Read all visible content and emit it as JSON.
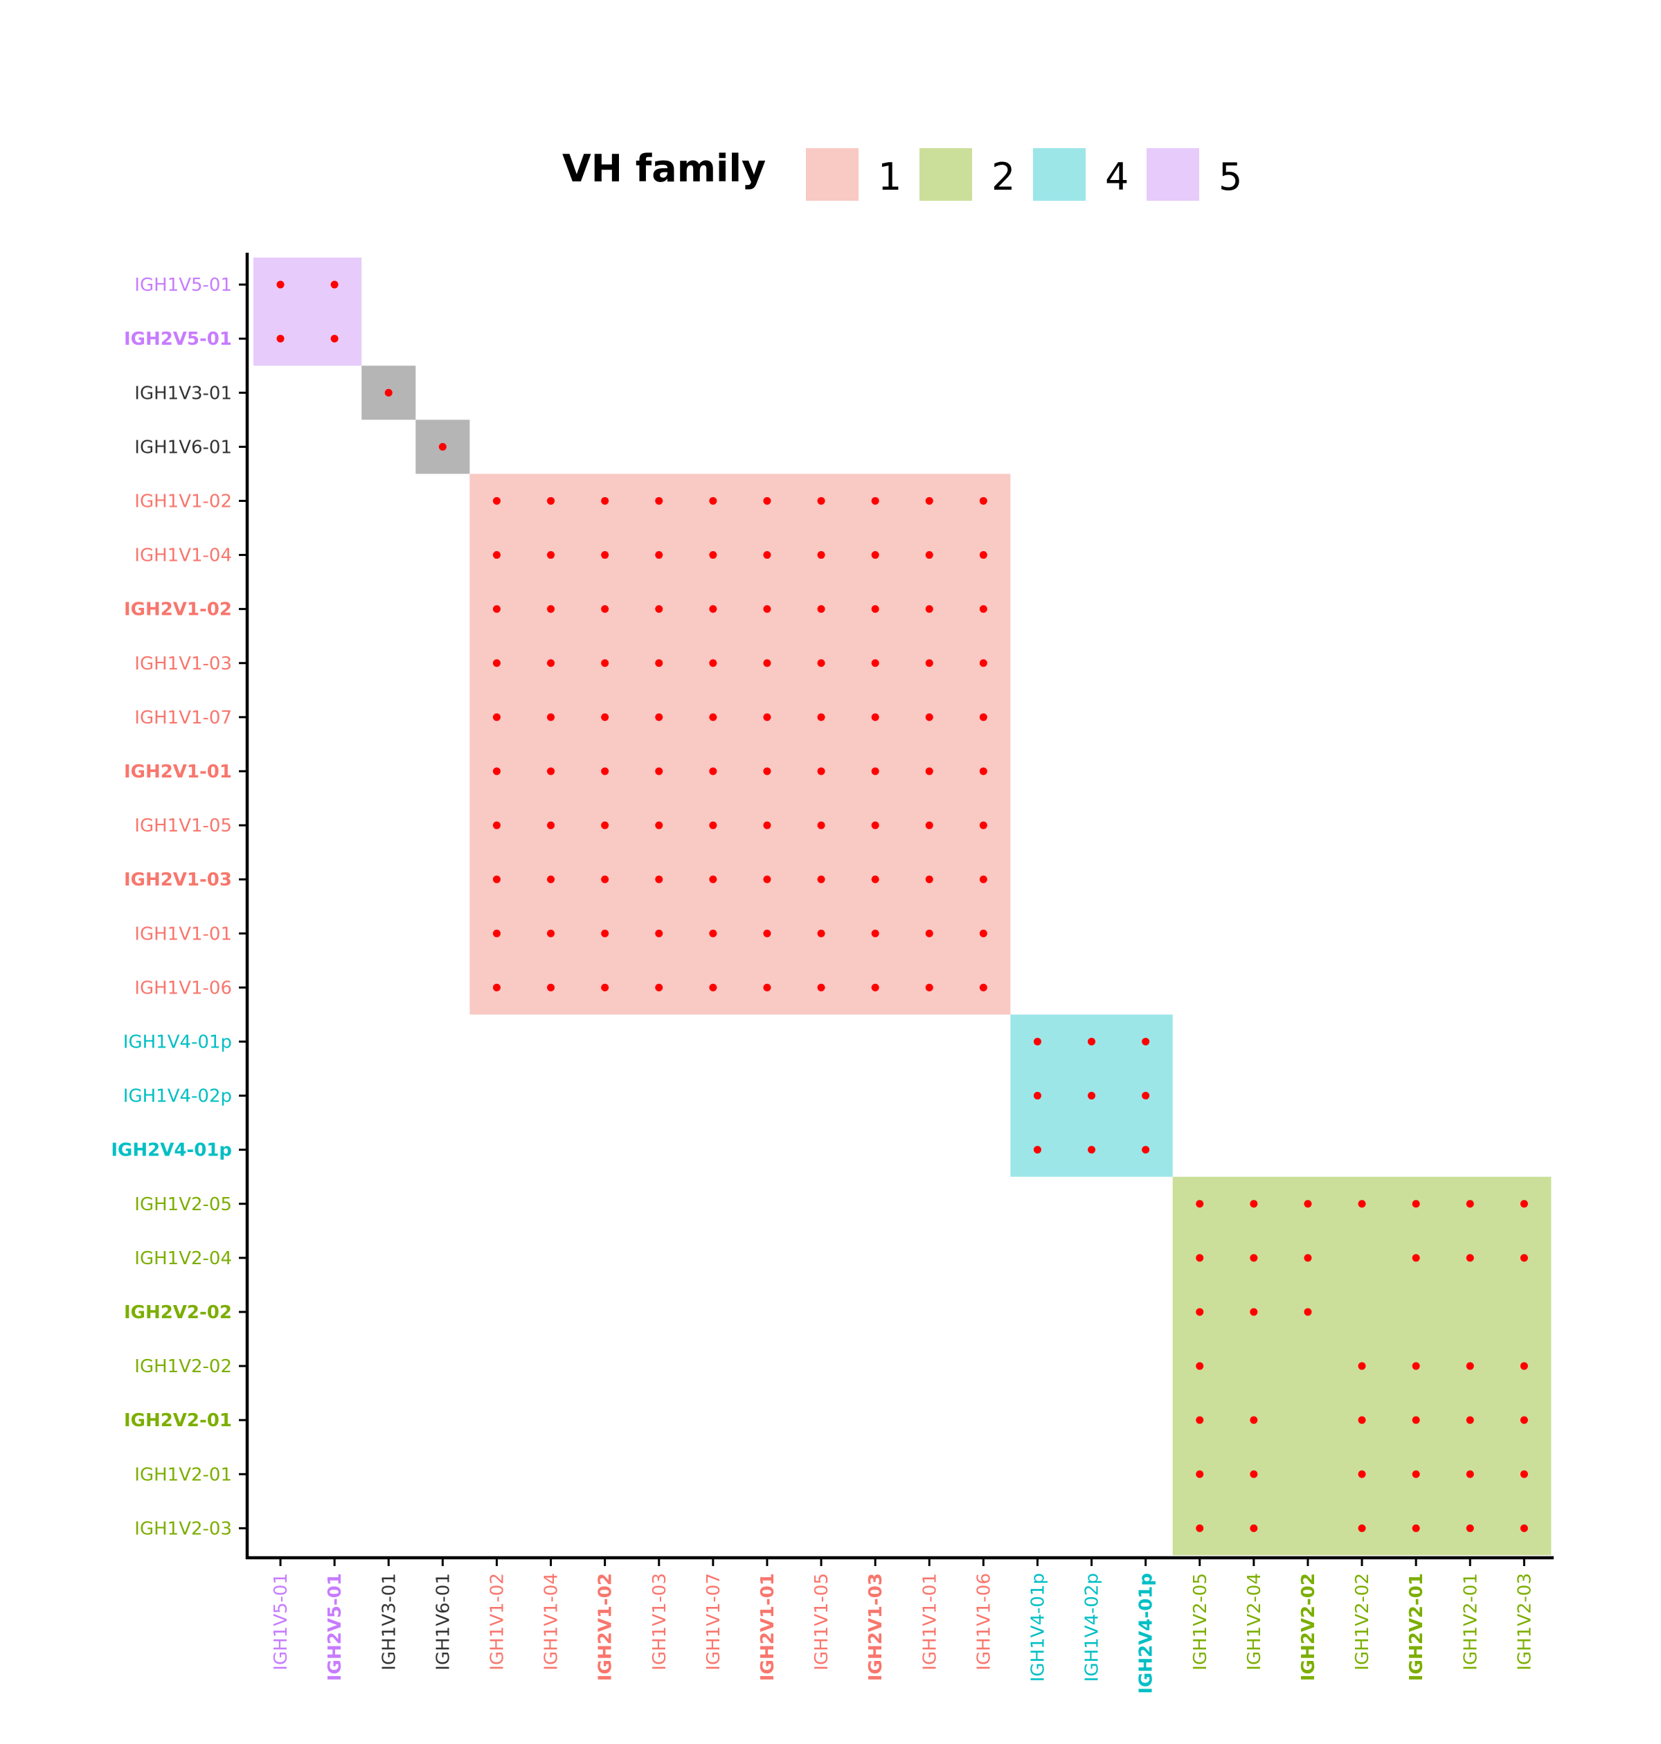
{
  "chart_data": {
    "type": "heatmap",
    "title": "",
    "xlabel": "",
    "ylabel": "",
    "legend": {
      "title": "VH family",
      "placement": "top",
      "entries": [
        {
          "label": "1",
          "color": "#f9c9c4"
        },
        {
          "label": "2",
          "color": "#cbdf9a"
        },
        {
          "label": "4",
          "color": "#9ce6e8"
        },
        {
          "label": "5",
          "color": "#e6cbfb"
        }
      ]
    },
    "family_colors": {
      "1": {
        "fill": "#f9c9c4",
        "text": "#f8766d"
      },
      "2": {
        "fill": "#cbdf9a",
        "text": "#7cae00"
      },
      "3": {
        "fill": "#b5b5b5",
        "text": "#333333"
      },
      "4": {
        "fill": "#9ce6e8",
        "text": "#00bfc4"
      },
      "5": {
        "fill": "#e6cbfb",
        "text": "#c77cff"
      },
      "6": {
        "fill": "#b5b5b5",
        "text": "#333333"
      }
    },
    "dot_color": "#ff0000",
    "genes": [
      {
        "name": "IGH1V5-01",
        "family": "5",
        "bold": false
      },
      {
        "name": "IGH2V5-01",
        "family": "5",
        "bold": true
      },
      {
        "name": "IGH1V3-01",
        "family": "3",
        "bold": false
      },
      {
        "name": "IGH1V6-01",
        "family": "6",
        "bold": false
      },
      {
        "name": "IGH1V1-02",
        "family": "1",
        "bold": false
      },
      {
        "name": "IGH1V1-04",
        "family": "1",
        "bold": false
      },
      {
        "name": "IGH2V1-02",
        "family": "1",
        "bold": true
      },
      {
        "name": "IGH1V1-03",
        "family": "1",
        "bold": false
      },
      {
        "name": "IGH1V1-07",
        "family": "1",
        "bold": false
      },
      {
        "name": "IGH2V1-01",
        "family": "1",
        "bold": true
      },
      {
        "name": "IGH1V1-05",
        "family": "1",
        "bold": false
      },
      {
        "name": "IGH2V1-03",
        "family": "1",
        "bold": true
      },
      {
        "name": "IGH1V1-01",
        "family": "1",
        "bold": false
      },
      {
        "name": "IGH1V1-06",
        "family": "1",
        "bold": false
      },
      {
        "name": "IGH1V4-01p",
        "family": "4",
        "bold": false
      },
      {
        "name": "IGH1V4-02p",
        "family": "4",
        "bold": false
      },
      {
        "name": "IGH2V4-01p",
        "family": "4",
        "bold": true
      },
      {
        "name": "IGH1V2-05",
        "family": "2",
        "bold": false
      },
      {
        "name": "IGH1V2-04",
        "family": "2",
        "bold": false
      },
      {
        "name": "IGH2V2-02",
        "family": "2",
        "bold": true
      },
      {
        "name": "IGH1V2-02",
        "family": "2",
        "bold": false
      },
      {
        "name": "IGH2V2-01",
        "family": "2",
        "bold": true
      },
      {
        "name": "IGH1V2-01",
        "family": "2",
        "bold": false
      },
      {
        "name": "IGH1V2-03",
        "family": "2",
        "bold": false
      }
    ],
    "blocks": [
      {
        "family": "5",
        "start": 0,
        "end": 1
      },
      {
        "family": "3",
        "start": 2,
        "end": 2
      },
      {
        "family": "6",
        "start": 3,
        "end": 3
      },
      {
        "family": "1",
        "start": 4,
        "end": 13
      },
      {
        "family": "4",
        "start": 14,
        "end": 16
      },
      {
        "family": "2",
        "start": 17,
        "end": 23
      }
    ],
    "dots": [
      [
        0,
        0
      ],
      [
        0,
        1
      ],
      [
        1,
        0
      ],
      [
        1,
        1
      ],
      [
        2,
        2
      ],
      [
        3,
        3
      ],
      [
        4,
        4
      ],
      [
        4,
        5
      ],
      [
        4,
        6
      ],
      [
        4,
        7
      ],
      [
        4,
        8
      ],
      [
        4,
        9
      ],
      [
        4,
        10
      ],
      [
        4,
        11
      ],
      [
        4,
        12
      ],
      [
        4,
        13
      ],
      [
        5,
        4
      ],
      [
        5,
        5
      ],
      [
        5,
        6
      ],
      [
        5,
        7
      ],
      [
        5,
        8
      ],
      [
        5,
        9
      ],
      [
        5,
        10
      ],
      [
        5,
        11
      ],
      [
        5,
        12
      ],
      [
        5,
        13
      ],
      [
        6,
        4
      ],
      [
        6,
        5
      ],
      [
        6,
        6
      ],
      [
        6,
        7
      ],
      [
        6,
        8
      ],
      [
        6,
        9
      ],
      [
        6,
        10
      ],
      [
        6,
        11
      ],
      [
        6,
        12
      ],
      [
        6,
        13
      ],
      [
        7,
        4
      ],
      [
        7,
        5
      ],
      [
        7,
        6
      ],
      [
        7,
        7
      ],
      [
        7,
        8
      ],
      [
        7,
        9
      ],
      [
        7,
        10
      ],
      [
        7,
        11
      ],
      [
        7,
        12
      ],
      [
        7,
        13
      ],
      [
        8,
        4
      ],
      [
        8,
        5
      ],
      [
        8,
        6
      ],
      [
        8,
        7
      ],
      [
        8,
        8
      ],
      [
        8,
        9
      ],
      [
        8,
        10
      ],
      [
        8,
        11
      ],
      [
        8,
        12
      ],
      [
        8,
        13
      ],
      [
        9,
        4
      ],
      [
        9,
        5
      ],
      [
        9,
        6
      ],
      [
        9,
        7
      ],
      [
        9,
        8
      ],
      [
        9,
        9
      ],
      [
        9,
        10
      ],
      [
        9,
        11
      ],
      [
        9,
        12
      ],
      [
        9,
        13
      ],
      [
        10,
        4
      ],
      [
        10,
        5
      ],
      [
        10,
        6
      ],
      [
        10,
        7
      ],
      [
        10,
        8
      ],
      [
        10,
        9
      ],
      [
        10,
        10
      ],
      [
        10,
        11
      ],
      [
        10,
        12
      ],
      [
        10,
        13
      ],
      [
        11,
        4
      ],
      [
        11,
        5
      ],
      [
        11,
        6
      ],
      [
        11,
        7
      ],
      [
        11,
        8
      ],
      [
        11,
        9
      ],
      [
        11,
        10
      ],
      [
        11,
        11
      ],
      [
        11,
        12
      ],
      [
        11,
        13
      ],
      [
        12,
        4
      ],
      [
        12,
        5
      ],
      [
        12,
        6
      ],
      [
        12,
        7
      ],
      [
        12,
        8
      ],
      [
        12,
        9
      ],
      [
        12,
        10
      ],
      [
        12,
        11
      ],
      [
        12,
        12
      ],
      [
        12,
        13
      ],
      [
        13,
        4
      ],
      [
        13,
        5
      ],
      [
        13,
        6
      ],
      [
        13,
        7
      ],
      [
        13,
        8
      ],
      [
        13,
        9
      ],
      [
        13,
        10
      ],
      [
        13,
        11
      ],
      [
        13,
        12
      ],
      [
        13,
        13
      ],
      [
        14,
        14
      ],
      [
        14,
        15
      ],
      [
        14,
        16
      ],
      [
        15,
        14
      ],
      [
        15,
        15
      ],
      [
        15,
        16
      ],
      [
        16,
        14
      ],
      [
        16,
        15
      ],
      [
        16,
        16
      ],
      [
        17,
        17
      ],
      [
        17,
        18
      ],
      [
        17,
        19
      ],
      [
        17,
        20
      ],
      [
        17,
        21
      ],
      [
        17,
        22
      ],
      [
        17,
        23
      ],
      [
        18,
        17
      ],
      [
        18,
        18
      ],
      [
        18,
        19
      ],
      [
        18,
        21
      ],
      [
        18,
        22
      ],
      [
        18,
        23
      ],
      [
        19,
        17
      ],
      [
        19,
        18
      ],
      [
        19,
        19
      ],
      [
        20,
        17
      ],
      [
        20,
        20
      ],
      [
        20,
        21
      ],
      [
        20,
        22
      ],
      [
        20,
        23
      ],
      [
        21,
        17
      ],
      [
        21,
        18
      ],
      [
        21,
        20
      ],
      [
        21,
        21
      ],
      [
        21,
        22
      ],
      [
        21,
        23
      ],
      [
        22,
        17
      ],
      [
        22,
        18
      ],
      [
        22,
        20
      ],
      [
        22,
        21
      ],
      [
        22,
        22
      ],
      [
        22,
        23
      ],
      [
        23,
        17
      ],
      [
        23,
        18
      ],
      [
        23,
        20
      ],
      [
        23,
        21
      ],
      [
        23,
        22
      ],
      [
        23,
        23
      ]
    ]
  }
}
